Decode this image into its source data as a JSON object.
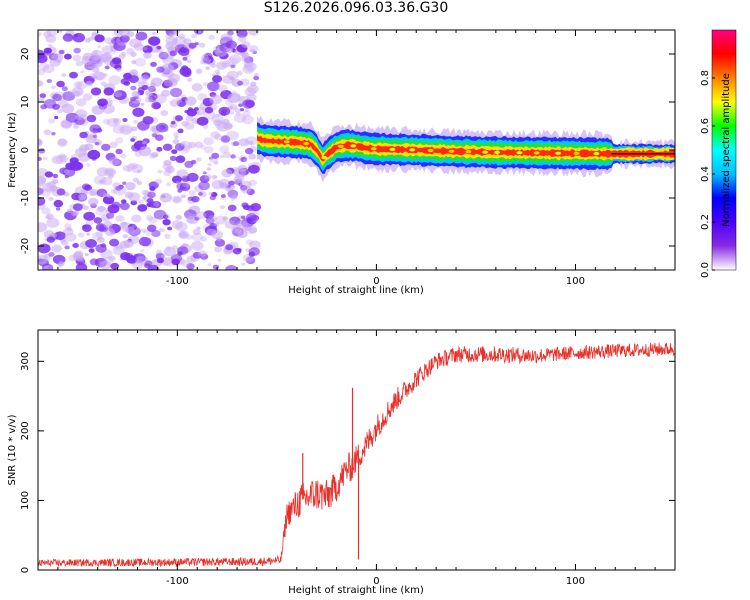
{
  "title": "S126.2026.096.03.36.G30",
  "chart_data": [
    {
      "type": "heatmap",
      "xlabel": "Height of straight line (km)",
      "ylabel": "Frequency (Hz)",
      "xlim": [
        -170,
        150
      ],
      "ylim": [
        -25,
        25
      ],
      "xticks": [
        -100,
        0,
        100
      ],
      "yticks": [
        -20,
        -10,
        0,
        10,
        20
      ],
      "noise_region_x": [
        -170,
        -60
      ],
      "ridge": {
        "x": [
          -60,
          -57,
          -50,
          -40,
          -33,
          -30,
          -27,
          -25,
          -20,
          -15,
          -10,
          -5,
          0,
          20,
          40,
          60,
          80,
          100,
          118,
          150
        ],
        "freq": [
          2.5,
          2.0,
          1.8,
          1.6,
          1.2,
          0,
          -2.0,
          -1.0,
          0.6,
          1.0,
          0.8,
          0.4,
          0.2,
          0.0,
          -0.3,
          -0.5,
          -0.6,
          -0.7,
          -0.8,
          -0.8
        ]
      },
      "colorbar": {
        "label": "Normalized spectral amplitude",
        "range": [
          0,
          1
        ],
        "ticks": [
          "0.0",
          "0.2",
          "0.4",
          "0.6",
          "0.8"
        ],
        "colors": [
          "#ffffff",
          "#8a2be2",
          "#4b00ff",
          "#0000ff",
          "#00bfff",
          "#00ffff",
          "#00ff00",
          "#ffff00",
          "#ff8000",
          "#ff0000",
          "#ff0080"
        ]
      }
    },
    {
      "type": "line",
      "xlabel": "Height of straight line (km)",
      "ylabel": "SNR (10 * v/v)",
      "xlim": [
        -170,
        150
      ],
      "ylim": [
        0,
        345
      ],
      "xticks": [
        -100,
        0,
        100
      ],
      "yticks": [
        0,
        100,
        200,
        300
      ],
      "color": "#e8302a",
      "series": {
        "x": [
          -170,
          -60,
          -48,
          -45,
          -38,
          -30,
          -25,
          -20,
          -15,
          -12,
          -10,
          -5,
          0,
          10,
          20,
          30,
          40,
          60,
          80,
          100,
          120,
          150
        ],
        "mean": [
          10,
          12,
          14,
          80,
          100,
          110,
          105,
          120,
          145,
          150,
          160,
          180,
          205,
          245,
          275,
          300,
          310,
          310,
          308,
          312,
          315,
          318
        ],
        "noise": [
          5,
          6,
          6,
          18,
          25,
          25,
          25,
          22,
          22,
          22,
          20,
          20,
          18,
          16,
          14,
          12,
          12,
          12,
          11,
          10,
          10,
          10
        ]
      },
      "spikes": [
        {
          "x": -37,
          "y": 168
        },
        {
          "x": -12,
          "y": 262
        },
        {
          "x": -9,
          "y": 15
        }
      ]
    }
  ]
}
